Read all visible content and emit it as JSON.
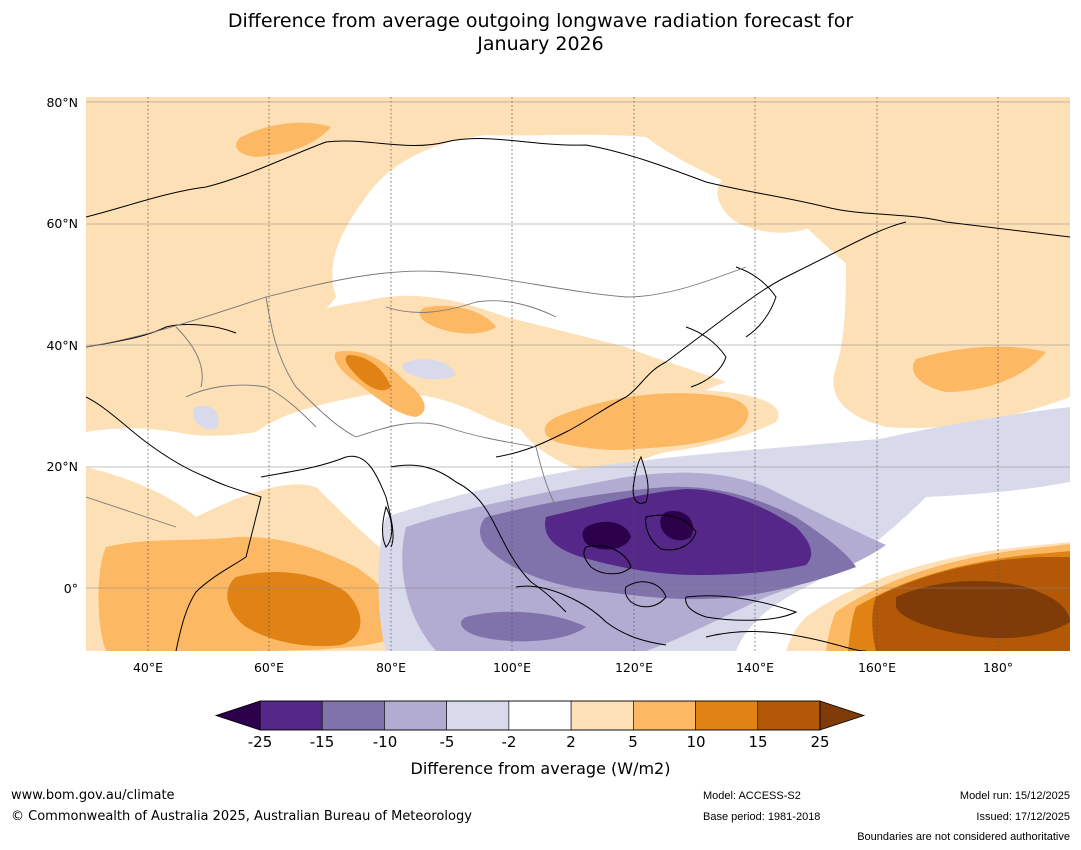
{
  "title": {
    "line1": "Difference from average outgoing longwave radiation forecast for",
    "line2": "January 2026"
  },
  "map": {
    "lat_labels": [
      "80°N",
      "60°N",
      "40°N",
      "20°N",
      "0°"
    ],
    "lon_labels": [
      "40°E",
      "60°E",
      "80°E",
      "100°E",
      "120°E",
      "140°E",
      "160°E",
      "180°"
    ],
    "region": "Asia and Indian Ocean to western Pacific",
    "colors": {
      "lt_m25": "#2d004b",
      "m25_m15": "#542788",
      "m15_m10": "#8073ac",
      "m10_m5": "#b2abd2",
      "m5_m2": "#d8daeb",
      "m2_2": "#ffffff",
      "p2_5": "#fee0b6",
      "p5_10": "#fdb863",
      "p10_15": "#e08214",
      "p15_25": "#b35806",
      "gt_25": "#7f3b08",
      "coast": "#000000",
      "border": "#777777"
    }
  },
  "colorbar": {
    "ticks": [
      "-25",
      "-15",
      "-10",
      "-5",
      "-2",
      "2",
      "5",
      "10",
      "15",
      "25"
    ],
    "colors": [
      "#542788",
      "#8073ac",
      "#b2abd2",
      "#d8daeb",
      "#ffffff",
      "#fee0b6",
      "#fdb863",
      "#e08214",
      "#b35806"
    ],
    "under_color": "#2d004b",
    "over_color": "#7f3b08",
    "label": "Difference from average (W/m2)"
  },
  "footer": {
    "url": "www.bom.gov.au/climate",
    "copyright": "© Commonwealth of Australia 2025, Australian Bureau of Meteorology",
    "model": "Model: ACCESS-S2",
    "base_period": "Base period: 1981-2018",
    "model_run": "Model run: 15/12/2025",
    "issued": "Issued: 17/12/2025",
    "disclaimer": "Boundaries are not considered authoritative"
  }
}
